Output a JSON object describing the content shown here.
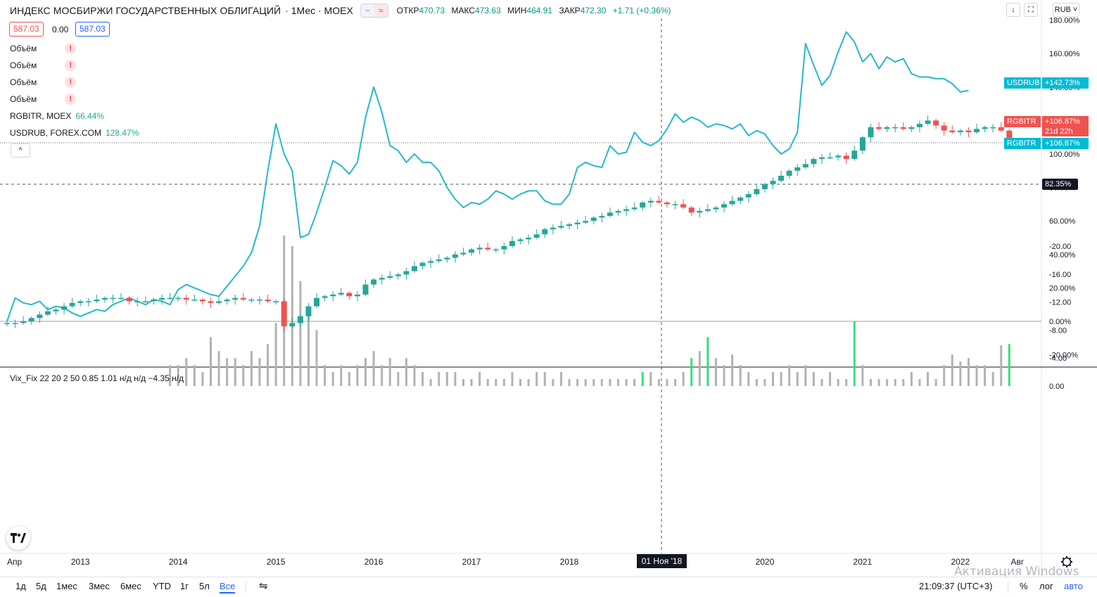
{
  "header": {
    "title": "ИНДЕКС МОСБИРЖИ ГОСУДАРСТВЕННЫХ ОБЛИГАЦИЙ",
    "interval": "· 1Мес · MOEX",
    "ohlc": [
      {
        "key": "ОТКР",
        "value": "470.73"
      },
      {
        "key": "МАКС",
        "value": "473.63"
      },
      {
        "key": "МИН",
        "value": "464.91"
      },
      {
        "key": "ЗАКР",
        "value": "472.30"
      },
      {
        "key": "",
        "value": "+1.71 (+0.36%)"
      }
    ],
    "compare_icon_a": "−",
    "compare_icon_b": "≈"
  },
  "price_boxes": {
    "sell": "587.03",
    "spread": "0.00",
    "buy": "587.03"
  },
  "legend": {
    "volume_label": "Объём",
    "volume_rows": 4,
    "warn_icon": "!",
    "rgbitr_label": "RGBITR, MOEX",
    "rgbitr_value": "66.44%",
    "usdrub_label": "USDRUB, FOREX.COM",
    "usdrub_value": "128.47%",
    "collapse_icon": "^"
  },
  "vix_legend": "Vix_Fix 22 20 2 50 0.85 1.01  н/д  н/д  −4.35  н/д",
  "currency_button": "RUB",
  "top_icons": {
    "down": "↓",
    "fullscreen": "⛶"
  },
  "price_labels": [
    {
      "name": "USDRUB",
      "value": "+142.73%",
      "color": "#00bcd4"
    },
    {
      "name": "RGBITR",
      "value": "+106.87%",
      "value2": "21d 22h",
      "color": "#ef5350"
    },
    {
      "name": "RGBITR",
      "value": "+106.87%",
      "color": "#00bcd4"
    },
    {
      "name": "",
      "value": "82.35%",
      "color": "#131722"
    }
  ],
  "crosshair_date": "01 Ноя '18",
  "ranges": [
    "1д",
    "5д",
    "1мес",
    "3мес",
    "6мес",
    "YTD",
    "1г",
    "5л",
    "Все"
  ],
  "active_range": "Все",
  "time": "21:09:37 (UTC+3)",
  "scale_buttons": [
    "%",
    "лог",
    "авто"
  ],
  "watermark": "Активация Windows",
  "colors": {
    "up": "#26a69a",
    "down": "#ef5350",
    "usdrub_line": "#26b9c8",
    "vix_gray": "#b2b2b2",
    "vix_green": "#36e07a"
  },
  "chart_data": [
    {
      "type": "line",
      "title": "ИНДЕКС МОСБИРЖИ ГОСУДАРСТВЕННЫХ ОБЛИГАЦИЙ",
      "series": [
        {
          "name": "RGBITR, MOEX",
          "style": "candlestick",
          "x": "monthly 2012-04 .. 2021-11",
          "values": [
            -1,
            -1,
            0,
            2,
            4,
            6,
            7,
            9,
            11,
            12,
            12,
            13,
            14,
            14,
            14,
            12,
            12,
            12,
            13,
            14,
            14,
            14,
            13,
            13,
            12,
            11,
            12,
            13,
            14,
            13,
            13,
            13,
            12,
            12,
            -3,
            -1,
            3,
            9,
            14,
            15,
            16,
            17,
            15,
            16,
            22,
            25,
            26,
            27,
            28,
            30,
            33,
            35,
            36,
            37,
            38,
            40,
            41,
            43,
            44,
            43,
            43,
            45,
            48,
            49,
            50,
            52,
            55,
            56,
            57,
            58,
            59,
            60,
            62,
            63,
            65,
            66,
            67,
            68,
            71,
            72,
            71,
            70,
            70,
            68,
            65,
            66,
            67,
            68,
            70,
            72,
            74,
            76,
            79,
            82,
            84,
            87,
            90,
            92,
            94,
            97,
            98,
            98,
            99,
            97,
            102,
            110,
            116,
            115,
            116,
            116,
            115,
            116,
            118,
            120,
            117,
            114,
            113,
            114,
            113,
            115,
            116,
            116,
            114,
            107
          ]
        },
        {
          "name": "USDRUB, FOREX.COM",
          "style": "line",
          "x": "monthly 2012-04 .. 2021-11",
          "values": [
            0,
            14,
            11,
            10,
            12,
            7,
            9,
            8,
            5,
            3,
            5,
            7,
            6,
            10,
            12,
            14,
            12,
            10,
            13,
            12,
            10,
            19,
            22,
            20,
            18,
            16,
            15,
            21,
            27,
            33,
            41,
            57,
            90,
            118,
            100,
            90,
            50,
            52,
            65,
            80,
            96,
            93,
            88,
            95,
            122,
            140,
            125,
            105,
            102,
            95,
            100,
            95,
            95,
            90,
            80,
            73,
            68,
            71,
            70,
            73,
            78,
            76,
            73,
            76,
            78,
            78,
            72,
            70,
            70,
            76,
            92,
            95,
            93,
            92,
            105,
            100,
            101,
            113,
            107,
            105,
            108,
            115,
            124,
            119,
            122,
            120,
            116,
            118,
            117,
            115,
            118,
            111,
            114,
            112,
            105,
            100,
            103,
            113,
            166,
            153,
            141,
            147,
            161,
            173,
            167,
            155,
            160,
            151,
            158,
            155,
            157,
            148,
            146,
            146,
            145,
            145,
            142,
            137,
            138
          ]
        }
      ],
      "ylim": [
        -25,
        185
      ],
      "yticks": [
        "180.00%",
        "160.00%",
        "140.00%",
        "120.00%",
        "100.00%",
        "80.00%",
        "60.00%",
        "40.00%",
        "20.00%",
        "0.00%",
        "-20.00%"
      ],
      "xticks": [
        "Апр",
        "2013",
        "2014",
        "2015",
        "2016",
        "2017",
        "2018",
        "2019",
        "2020",
        "2021",
        "2022",
        "Авг"
      ],
      "grid": false,
      "legend": "top-left"
    },
    {
      "type": "bar",
      "title": "Vix_Fix 22 20 2 50 0.85 1.01",
      "x": "monthly 2012-04 .. 2021-11",
      "values": [
        0,
        0,
        0,
        0,
        0,
        0,
        0,
        0,
        0,
        0,
        0,
        0,
        0,
        0,
        0,
        0,
        0,
        0,
        0,
        0,
        -3,
        -3,
        -4,
        -3,
        -2,
        -7,
        -5,
        -4,
        -4,
        -3,
        -5,
        -4,
        -6,
        -9,
        -21.5,
        -20,
        -15,
        -11,
        -8,
        -3,
        -2,
        -3,
        -2,
        -3,
        -4,
        -5,
        -3,
        -4,
        -2,
        -4,
        -3,
        -2,
        -1,
        -2,
        -2,
        -2,
        -1,
        -1,
        -2,
        -1,
        -1,
        -1,
        -2,
        -1,
        -1,
        -2,
        -2,
        -1,
        -2,
        -1,
        -1,
        -1,
        -1,
        -1,
        -1,
        -1,
        -1,
        -1,
        -2,
        -2,
        -1,
        -1,
        -1,
        -2,
        -4,
        -5,
        -7,
        -4,
        -3,
        -4.5,
        -3,
        -2,
        -1,
        -1,
        -2,
        -2,
        -3,
        -2,
        -3,
        -2,
        -1,
        -2,
        -1,
        -1,
        -9.2,
        -3,
        -1,
        -1,
        -1,
        -1,
        -1,
        -2,
        -1,
        -2,
        -1,
        -3,
        -4.5,
        -3.5,
        -4,
        -3,
        -3,
        -2,
        -5.8,
        -6
      ],
      "highlight": [
        false,
        false,
        false,
        false,
        false,
        false,
        false,
        false,
        false,
        false,
        false,
        false,
        false,
        false,
        false,
        false,
        false,
        false,
        false,
        false,
        false,
        false,
        false,
        false,
        false,
        false,
        false,
        false,
        false,
        false,
        false,
        false,
        false,
        false,
        false,
        false,
        false,
        false,
        false,
        false,
        false,
        false,
        false,
        false,
        false,
        false,
        false,
        false,
        false,
        false,
        false,
        false,
        false,
        false,
        false,
        false,
        false,
        false,
        false,
        false,
        false,
        false,
        false,
        false,
        false,
        false,
        false,
        false,
        false,
        false,
        false,
        false,
        false,
        false,
        false,
        false,
        false,
        false,
        true,
        false,
        false,
        false,
        false,
        false,
        true,
        false,
        true,
        false,
        false,
        false,
        false,
        false,
        false,
        false,
        false,
        false,
        false,
        false,
        false,
        false,
        false,
        false,
        false,
        false,
        true,
        false,
        false,
        false,
        false,
        false,
        false,
        false,
        false,
        false,
        false,
        false,
        false,
        false,
        false,
        false,
        false,
        false,
        false,
        true
      ],
      "positive_marks": [
        3,
        5,
        10
      ],
      "ylim": [
        -24,
        1
      ],
      "yticks": [
        "0.00",
        "-4.00",
        "-8.00",
        "-12.00",
        "-16.00",
        "-20.00"
      ],
      "grid": false
    }
  ]
}
